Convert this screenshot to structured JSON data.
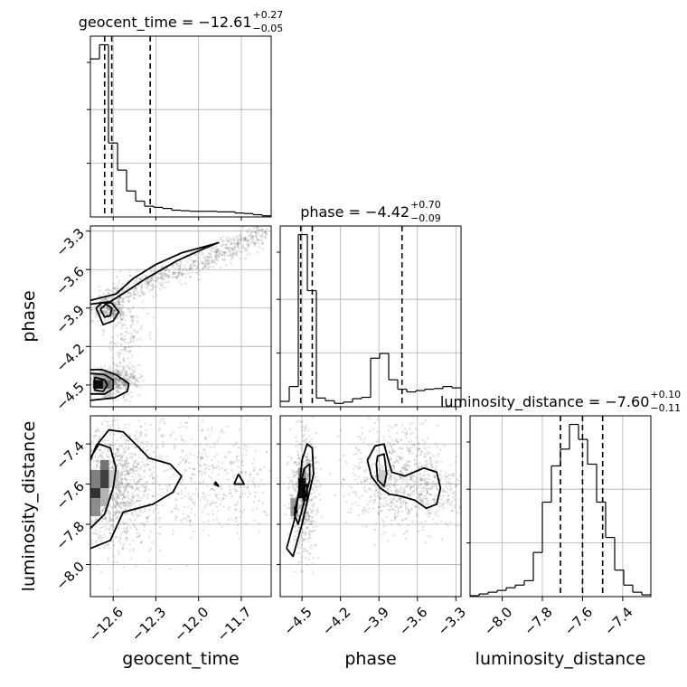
{
  "chart_data": {
    "type": "corner",
    "parameters": [
      "geocent_time",
      "phase",
      "luminosity_distance"
    ],
    "grid": true,
    "titles": [
      {
        "param": "geocent_time",
        "prefix": "geocent_time = −12.61",
        "plus": "+0.27",
        "minus": "−0.05",
        "median": -12.61,
        "q_minus": 0.05,
        "q_plus": 0.27
      },
      {
        "param": "phase",
        "prefix": "phase = −4.42",
        "plus": "+0.70",
        "minus": "−0.09",
        "median": -4.42,
        "q_minus": 0.09,
        "q_plus": 0.7
      },
      {
        "param": "luminosity_distance",
        "prefix": "luminosity_distance = −7.60",
        "plus": "+0.10",
        "minus": "−0.11",
        "median": -7.6,
        "q_minus": 0.11,
        "q_plus": 0.1
      }
    ],
    "axes": {
      "geocent_time": {
        "range": [
          -12.76,
          -11.49
        ],
        "ticks": [
          -12.6,
          -12.3,
          -12.0,
          -11.7
        ],
        "tick_labels": [
          "−12.6",
          "−12.3",
          "−12.0",
          "−11.7"
        ]
      },
      "phase": {
        "range": [
          -4.67,
          -3.26
        ],
        "ticks": [
          -4.5,
          -4.2,
          -3.9,
          -3.6,
          -3.3
        ],
        "tick_labels": [
          "−4.5",
          "−4.2",
          "−3.9",
          "−3.6",
          "−3.3"
        ]
      },
      "luminosity_distance": {
        "range": [
          -8.16,
          -7.26
        ],
        "ticks": [
          -8.0,
          -7.8,
          -7.6,
          -7.4
        ],
        "tick_labels": [
          "−8.0",
          "−7.8",
          "−7.6",
          "−7.4"
        ]
      }
    },
    "histograms": {
      "geocent_time": {
        "bins": [
          -12.76,
          -12.696,
          -12.633,
          -12.569,
          -12.506,
          -12.442,
          -12.379,
          -12.315,
          -12.252,
          -12.188,
          -12.125,
          -12.061,
          -11.998,
          -11.934,
          -11.871,
          -11.807,
          -11.744,
          -11.68,
          -11.617,
          -11.553,
          -11.49
        ],
        "counts": [
          280,
          305,
          131,
          83,
          46,
          28,
          19,
          17,
          15,
          12,
          11,
          10,
          10,
          10,
          9,
          9,
          7,
          6,
          4,
          2
        ]
      },
      "phase": {
        "bins": [
          -4.67,
          -4.5995,
          -4.529,
          -4.4585,
          -4.388,
          -4.3175,
          -4.247,
          -4.1765,
          -4.106,
          -4.0355,
          -3.965,
          -3.8945,
          -3.824,
          -3.7535,
          -3.683,
          -3.6125,
          -3.542,
          -3.4715,
          -3.401,
          -3.3305,
          -3.26
        ],
        "counts": [
          8,
          30,
          255,
          172,
          13,
          9,
          5,
          7,
          12,
          14,
          72,
          79,
          40,
          26,
          22,
          24,
          26,
          27,
          30,
          28
        ]
      },
      "luminosity_distance": {
        "bins": [
          -8.16,
          -8.115,
          -8.07,
          -8.025,
          -7.98,
          -7.935,
          -7.89,
          -7.845,
          -7.8,
          -7.755,
          -7.71,
          -7.665,
          -7.62,
          -7.575,
          -7.53,
          -7.485,
          -7.44,
          -7.395,
          -7.35,
          -7.305,
          -7.26
        ],
        "counts": [
          1,
          3,
          5,
          7,
          10,
          13,
          18,
          50,
          107,
          148,
          167,
          195,
          178,
          150,
          107,
          67,
          30,
          13,
          5,
          2
        ]
      }
    },
    "quantile_lines": {
      "geocent_time": [
        -12.66,
        -12.61,
        -12.34
      ],
      "phase": [
        -4.51,
        -4.42,
        -3.72
      ],
      "luminosity_distance": [
        -7.71,
        -7.6,
        -7.5
      ]
    },
    "scatter": [
      {
        "x": "geocent_time",
        "y": "phase",
        "modes": [
          {
            "type": "ridge",
            "from": [
              -12.7,
              -3.87
            ],
            "to": [
              -11.52,
              -3.31
            ],
            "width": 0.05,
            "n": 750
          },
          {
            "type": "blob",
            "center": [
              -12.6,
              -4.47
            ],
            "spread": [
              0.09,
              0.05
            ],
            "n": 480
          },
          {
            "type": "blob",
            "center": [
              -12.62,
              -3.92
            ],
            "spread": [
              0.06,
              0.04
            ],
            "n": 220
          },
          {
            "type": "blob",
            "center": [
              -12.52,
              -4.15
            ],
            "spread": [
              0.07,
              0.18
            ],
            "n": 160
          }
        ]
      },
      {
        "x": "geocent_time",
        "y": "luminosity_distance",
        "modes": [
          {
            "type": "blob",
            "center": [
              -12.58,
              -7.62
            ],
            "spread": [
              0.13,
              0.15
            ],
            "n": 1000
          },
          {
            "type": "blob",
            "center": [
              -12.1,
              -7.55
            ],
            "spread": [
              0.3,
              0.16
            ],
            "n": 380
          },
          {
            "type": "blob",
            "center": [
              -11.8,
              -7.6
            ],
            "spread": [
              0.2,
              0.12
            ],
            "n": 160
          }
        ]
      },
      {
        "x": "phase",
        "y": "luminosity_distance",
        "modes": [
          {
            "type": "blob",
            "center": [
              -4.49,
              -7.65
            ],
            "spread": [
              0.05,
              0.14
            ],
            "n": 650
          },
          {
            "type": "blob",
            "center": [
              -3.78,
              -7.57
            ],
            "spread": [
              0.17,
              0.13
            ],
            "n": 650
          },
          {
            "type": "blob",
            "center": [
              -3.45,
              -7.62
            ],
            "spread": [
              0.14,
              0.1
            ],
            "n": 250
          }
        ]
      }
    ],
    "density_cells": [
      {
        "x": "geocent_time",
        "y": "phase",
        "cells": [
          {
            "x0": -12.74,
            "x1": -12.67,
            "y0": -4.53,
            "y1": -4.46,
            "shade": 0.95
          },
          {
            "x0": -12.67,
            "x1": -12.61,
            "y0": -4.53,
            "y1": -4.46,
            "shade": 0.55
          },
          {
            "x0": -12.67,
            "x1": -12.61,
            "y0": -4.46,
            "y1": -4.4,
            "shade": 0.35
          },
          {
            "x0": -12.74,
            "x1": -12.67,
            "y0": -4.46,
            "y1": -4.4,
            "shade": 0.3
          },
          {
            "x0": -12.67,
            "x1": -12.61,
            "y0": -4.6,
            "y1": -4.53,
            "shade": 0.2
          }
        ]
      },
      {
        "x": "geocent_time",
        "y": "luminosity_distance",
        "cells": [
          {
            "x0": -12.76,
            "x1": -12.69,
            "y0": -7.67,
            "y1": -7.62,
            "shade": 0.8
          },
          {
            "x0": -12.69,
            "x1": -12.63,
            "y0": -7.62,
            "y1": -7.53,
            "shade": 0.75
          },
          {
            "x0": -12.69,
            "x1": -12.63,
            "y0": -7.53,
            "y1": -7.48,
            "shade": 0.55
          },
          {
            "x0": -12.76,
            "x1": -12.69,
            "y0": -7.76,
            "y1": -7.67,
            "shade": 0.45
          },
          {
            "x0": -12.76,
            "x1": -12.69,
            "y0": -7.62,
            "y1": -7.53,
            "shade": 0.5
          },
          {
            "x0": -12.69,
            "x1": -12.63,
            "y0": -7.71,
            "y1": -7.62,
            "shade": 0.3
          },
          {
            "x0": -12.63,
            "x1": -12.56,
            "y0": -7.62,
            "y1": -7.53,
            "shade": 0.2
          }
        ]
      },
      {
        "x": "phase",
        "y": "luminosity_distance",
        "cells": [
          {
            "x0": -4.53,
            "x1": -4.47,
            "y0": -7.67,
            "y1": -7.57,
            "shade": 0.95
          },
          {
            "x0": -4.53,
            "x1": -4.47,
            "y0": -7.57,
            "y1": -7.52,
            "shade": 0.45
          },
          {
            "x0": -4.59,
            "x1": -4.53,
            "y0": -7.76,
            "y1": -7.67,
            "shade": 0.4
          },
          {
            "x0": -3.9,
            "x1": -3.84,
            "y0": -7.62,
            "y1": -7.53,
            "shade": 0.2
          }
        ]
      }
    ],
    "contours": [
      {
        "x": "geocent_time",
        "y": "phase",
        "levels": [
          [
            [
              -12.76,
              -3.87
            ],
            [
              -12.62,
              -3.85
            ],
            [
              -12.52,
              -3.78
            ],
            [
              -12.37,
              -3.67
            ],
            [
              -12.15,
              -3.53
            ],
            [
              -11.95,
              -3.43
            ],
            [
              -11.86,
              -3.39
            ],
            [
              -11.92,
              -3.41
            ],
            [
              -12.12,
              -3.47
            ],
            [
              -12.3,
              -3.56
            ],
            [
              -12.46,
              -3.67
            ],
            [
              -12.58,
              -3.79
            ],
            [
              -12.76,
              -3.84
            ]
          ],
          [
            [
              -12.72,
              -3.9
            ],
            [
              -12.67,
              -4.03
            ],
            [
              -12.6,
              -4.0
            ],
            [
              -12.56,
              -3.93
            ],
            [
              -12.61,
              -3.86
            ],
            [
              -12.68,
              -3.86
            ],
            [
              -12.72,
              -3.9
            ]
          ],
          [
            [
              -12.69,
              -3.91
            ],
            [
              -12.66,
              -3.97
            ],
            [
              -12.62,
              -3.96
            ],
            [
              -12.61,
              -3.9
            ],
            [
              -12.65,
              -3.87
            ],
            [
              -12.69,
              -3.91
            ]
          ],
          [
            [
              -12.76,
              -4.38
            ],
            [
              -12.68,
              -4.38
            ],
            [
              -12.58,
              -4.42
            ],
            [
              -12.49,
              -4.49
            ],
            [
              -12.5,
              -4.55
            ],
            [
              -12.59,
              -4.6
            ],
            [
              -12.76,
              -4.62
            ]
          ],
          [
            [
              -12.76,
              -4.41
            ],
            [
              -12.66,
              -4.42
            ],
            [
              -12.6,
              -4.46
            ],
            [
              -12.6,
              -4.53
            ],
            [
              -12.66,
              -4.57
            ],
            [
              -12.76,
              -4.57
            ]
          ],
          [
            [
              -12.73,
              -4.44
            ],
            [
              -12.66,
              -4.46
            ],
            [
              -12.64,
              -4.5
            ],
            [
              -12.67,
              -4.55
            ],
            [
              -12.73,
              -4.54
            ],
            [
              -12.73,
              -4.44
            ]
          ]
        ]
      },
      {
        "x": "geocent_time",
        "y": "luminosity_distance",
        "levels": [
          [
            [
              -12.76,
              -7.92
            ],
            [
              -12.62,
              -7.88
            ],
            [
              -12.53,
              -7.74
            ],
            [
              -12.32,
              -7.7
            ],
            [
              -12.18,
              -7.64
            ],
            [
              -12.12,
              -7.56
            ],
            [
              -12.2,
              -7.5
            ],
            [
              -12.35,
              -7.47
            ],
            [
              -12.43,
              -7.41
            ],
            [
              -12.53,
              -7.34
            ],
            [
              -12.63,
              -7.33
            ],
            [
              -12.72,
              -7.41
            ],
            [
              -12.76,
              -7.48
            ]
          ],
          [
            [
              -12.76,
              -7.82
            ],
            [
              -12.66,
              -7.75
            ],
            [
              -12.6,
              -7.62
            ],
            [
              -12.58,
              -7.52
            ],
            [
              -12.62,
              -7.42
            ],
            [
              -12.7,
              -7.4
            ],
            [
              -12.76,
              -7.47
            ]
          ],
          [
            [
              -11.72,
              -7.55
            ],
            [
              -11.68,
              -7.6
            ],
            [
              -11.75,
              -7.6
            ],
            [
              -11.72,
              -7.55
            ]
          ],
          [
            [
              -11.89,
              -7.6
            ],
            [
              -11.86,
              -7.61
            ],
            [
              -11.88,
              -7.59
            ],
            [
              -11.89,
              -7.6
            ]
          ]
        ]
      },
      {
        "x": "phase",
        "y": "luminosity_distance",
        "levels": [
          [
            [
              -4.62,
              -7.92
            ],
            [
              -4.56,
              -7.78
            ],
            [
              -4.52,
              -7.62
            ],
            [
              -4.5,
              -7.48
            ],
            [
              -4.46,
              -7.4
            ],
            [
              -4.42,
              -7.42
            ],
            [
              -4.41,
              -7.55
            ],
            [
              -4.45,
              -7.66
            ],
            [
              -4.5,
              -7.8
            ],
            [
              -4.57,
              -7.96
            ],
            [
              -4.62,
              -7.92
            ]
          ],
          [
            [
              -4.56,
              -7.75
            ],
            [
              -4.52,
              -7.62
            ],
            [
              -4.48,
              -7.52
            ],
            [
              -4.44,
              -7.5
            ],
            [
              -4.44,
              -7.58
            ],
            [
              -4.48,
              -7.68
            ],
            [
              -4.53,
              -7.8
            ],
            [
              -4.56,
              -7.75
            ]
          ],
          [
            [
              -4.49,
              -7.62
            ],
            [
              -4.46,
              -7.6
            ],
            [
              -4.46,
              -7.68
            ],
            [
              -4.49,
              -7.68
            ],
            [
              -4.49,
              -7.62
            ]
          ],
          [
            [
              -4.56,
              -7.72
            ],
            [
              -4.55,
              -7.71
            ],
            [
              -4.54,
              -7.74
            ],
            [
              -4.56,
              -7.72
            ]
          ],
          [
            [
              -3.99,
              -7.48
            ],
            [
              -3.93,
              -7.41
            ],
            [
              -3.86,
              -7.4
            ],
            [
              -3.84,
              -7.45
            ],
            [
              -3.8,
              -7.54
            ],
            [
              -3.7,
              -7.56
            ],
            [
              -3.55,
              -7.52
            ],
            [
              -3.45,
              -7.54
            ],
            [
              -3.42,
              -7.62
            ],
            [
              -3.45,
              -7.7
            ],
            [
              -3.53,
              -7.72
            ],
            [
              -3.62,
              -7.68
            ],
            [
              -3.73,
              -7.66
            ],
            [
              -3.82,
              -7.65
            ],
            [
              -3.89,
              -7.62
            ],
            [
              -3.96,
              -7.56
            ],
            [
              -3.99,
              -7.48
            ]
          ],
          [
            [
              -3.91,
              -7.46
            ],
            [
              -3.86,
              -7.45
            ],
            [
              -3.84,
              -7.55
            ],
            [
              -3.86,
              -7.61
            ],
            [
              -3.91,
              -7.58
            ],
            [
              -3.92,
              -7.5
            ],
            [
              -3.91,
              -7.46
            ]
          ]
        ]
      }
    ],
    "colors": {
      "ink": "#000000",
      "grid": "#b0b0b0",
      "points": "#555555",
      "frame": "#000000"
    }
  }
}
